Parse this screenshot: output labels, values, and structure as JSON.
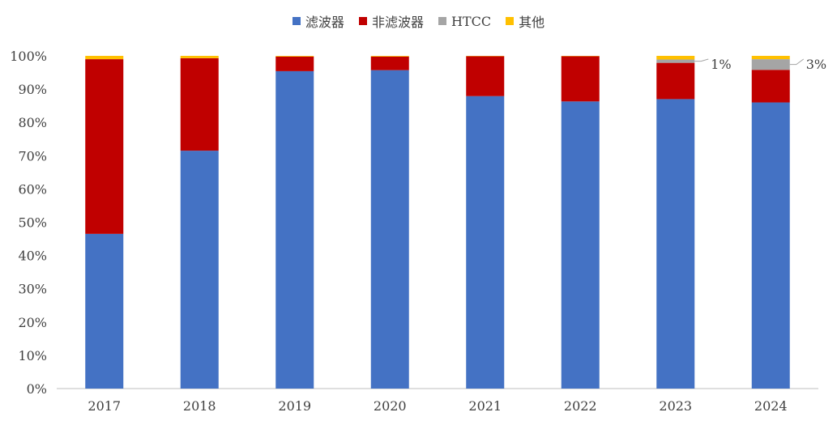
{
  "chart_data": {
    "type": "bar",
    "stacked": true,
    "normalized": true,
    "categories": [
      "2017",
      "2018",
      "2019",
      "2020",
      "2021",
      "2022",
      "2023",
      "2024"
    ],
    "series": [
      {
        "name": "滤波器",
        "color": "#4472C4",
        "values": [
          46.5,
          71.5,
          95.4,
          95.7,
          87.9,
          86.3,
          87.0,
          86.0
        ]
      },
      {
        "name": "非滤波器",
        "color": "#C00000",
        "values": [
          52.5,
          27.8,
          4.4,
          4.1,
          12.0,
          13.6,
          10.9,
          9.8
        ]
      },
      {
        "name": "HTCC",
        "color": "#A5A5A5",
        "values": [
          0,
          0,
          0,
          0,
          0,
          0,
          1.0,
          3.2
        ]
      },
      {
        "name": "其他",
        "color": "#FFC000",
        "values": [
          1.0,
          0.7,
          0.2,
          0.2,
          0.1,
          0.1,
          1.1,
          1.0
        ]
      }
    ],
    "y_ticks": [
      "0%",
      "10%",
      "20%",
      "30%",
      "40%",
      "50%",
      "60%",
      "70%",
      "80%",
      "90%",
      "100%"
    ],
    "ylim": [
      0,
      100
    ],
    "legend_position": "top",
    "grid": false,
    "annotations": [
      {
        "category": "2023",
        "series": "HTCC",
        "text": "1%"
      },
      {
        "category": "2024",
        "series": "HTCC",
        "text": "3%"
      }
    ]
  }
}
